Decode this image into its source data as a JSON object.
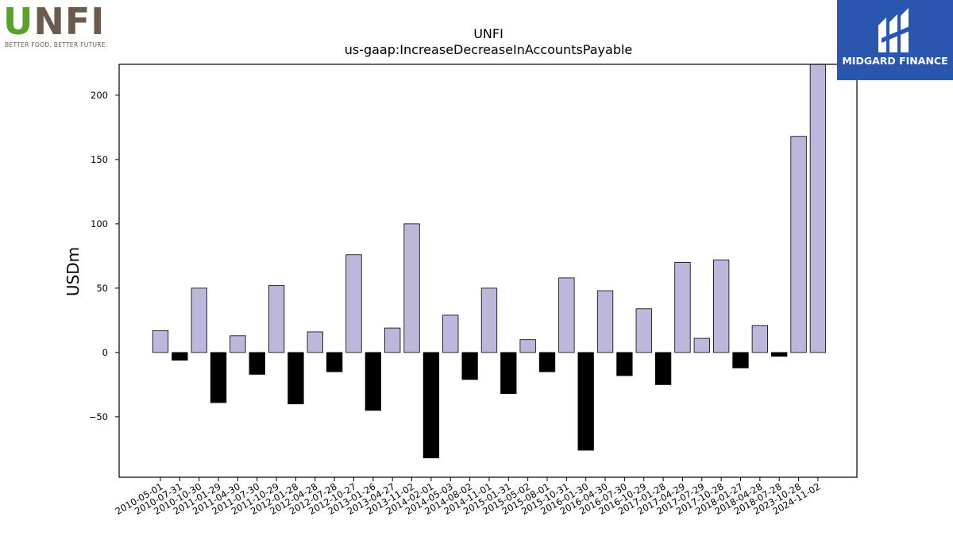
{
  "logos": {
    "left_wordmark": "UNFI",
    "left_tagline": "BETTER FOOD. BETTER FUTURE.",
    "right_name": "MIDGARD FINANCE"
  },
  "chart_data": {
    "type": "bar",
    "title": "UNFI",
    "subtitle": "us-gaap:IncreaseDecreaseInAccountsPayable",
    "xlabel": "",
    "ylabel": "USDm",
    "ylim": [
      -97,
      224
    ],
    "yticks": [
      -50,
      0,
      50,
      100,
      150,
      200
    ],
    "grid": false,
    "colors": {
      "positive": "#bcb8dc",
      "negative": "#000000",
      "edge": "#000000"
    },
    "categories": [
      "2010-05-01",
      "2010-07-31",
      "2010-10-30",
      "2011-01-29",
      "2011-04-30",
      "2011-07-30",
      "2011-10-29",
      "2012-01-28",
      "2012-04-28",
      "2012-07-28",
      "2012-10-27",
      "2013-01-26",
      "2013-04-27",
      "2013-11-02",
      "2014-02-01",
      "2014-05-03",
      "2014-08-02",
      "2014-11-01",
      "2015-01-31",
      "2015-05-02",
      "2015-08-01",
      "2015-10-31",
      "2016-01-30",
      "2016-04-30",
      "2016-07-30",
      "2016-10-29",
      "2017-01-28",
      "2017-04-29",
      "2017-07-29",
      "2017-10-28",
      "2018-01-27",
      "2018-04-28",
      "2018-07-28",
      "2023-10-28",
      "2024-11-02"
    ],
    "values": [
      17,
      -6,
      50,
      -39,
      13,
      -17,
      52,
      -40,
      16,
      -15,
      76,
      -45,
      19,
      100,
      -82,
      29,
      -21,
      50,
      -32,
      10,
      -15,
      58,
      -76,
      48,
      -18,
      34,
      -25,
      70,
      11,
      72,
      -12,
      21,
      -3,
      168,
      224
    ]
  }
}
